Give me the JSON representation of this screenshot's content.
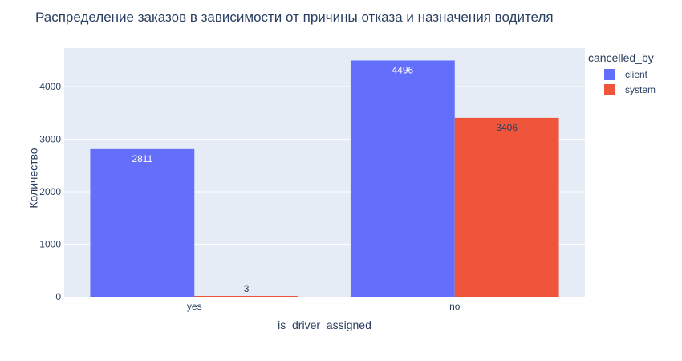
{
  "title": "Распределение заказов в зависимости от причины отказа и назначения водителя",
  "chart_data": {
    "type": "bar",
    "categories": [
      "yes",
      "no"
    ],
    "series": [
      {
        "name": "client",
        "values": [
          2811,
          4496
        ],
        "color": "#636efa"
      },
      {
        "name": "system",
        "values": [
          3,
          3406
        ],
        "color": "#ef553b"
      }
    ],
    "xlabel": "is_driver_assigned",
    "ylabel": "Количество",
    "ylim": [
      0,
      4732
    ],
    "yticks": [
      0,
      1000,
      2000,
      3000,
      4000
    ],
    "legend_title": "cancelled_by",
    "legend_position": "top-right",
    "grid": true,
    "plot_bg": "#e5ecf6"
  }
}
